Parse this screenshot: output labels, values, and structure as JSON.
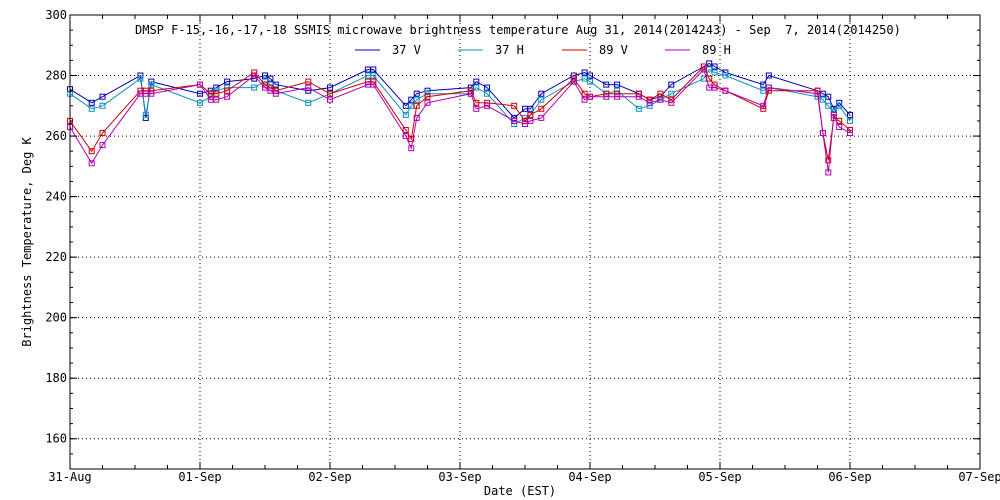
{
  "chart_data": {
    "type": "line",
    "title": "DMSP F-15,-16,-17,-18 SSMIS microwave brightness temperature Aug 31, 2014(2014243) - Sep  7, 2014(2014250)",
    "xlabel": "Date (EST)",
    "ylabel": "Brightness Temperature, Deg K",
    "ylim": [
      150,
      300
    ],
    "yticks": [
      160,
      180,
      200,
      220,
      240,
      260,
      280,
      300
    ],
    "xlim": [
      "2014-08-31",
      "2014-09-07"
    ],
    "xticks": [
      "31-Aug",
      "01-Sep",
      "02-Sep",
      "03-Sep",
      "04-Sep",
      "05-Sep",
      "06-Sep",
      "07-Sep"
    ],
    "grid": true,
    "legend_position": "top-center",
    "series": [
      {
        "name": "37 V",
        "color": "#0000b0",
        "points": [
          [
            "2014-08-31 00:00",
            275.5
          ],
          [
            "2014-08-31 04:00",
            271
          ],
          [
            "2014-08-31 06:00",
            273
          ],
          [
            "2014-08-31 13:00",
            280
          ],
          [
            "2014-08-31 14:00",
            266
          ],
          [
            "2014-08-31 15:00",
            278
          ],
          [
            "2014-09-01 00:00",
            274
          ],
          [
            "2014-09-01 02:00",
            275
          ],
          [
            "2014-09-01 03:00",
            276
          ],
          [
            "2014-09-01 05:00",
            278
          ],
          [
            "2014-09-01 10:00",
            279
          ],
          [
            "2014-09-01 12:00",
            280
          ],
          [
            "2014-09-01 13:00",
            279
          ],
          [
            "2014-09-01 14:00",
            277
          ],
          [
            "2014-09-01 20:00",
            275
          ],
          [
            "2014-09-02 00:00",
            276
          ],
          [
            "2014-09-02 07:00",
            282
          ],
          [
            "2014-09-02 08:00",
            282
          ],
          [
            "2014-09-02 14:00",
            270
          ],
          [
            "2014-09-02 15:00",
            272
          ],
          [
            "2014-09-02 16:00",
            274
          ],
          [
            "2014-09-02 18:00",
            275
          ],
          [
            "2014-09-03 02:00",
            276
          ],
          [
            "2014-09-03 03:00",
            278
          ],
          [
            "2014-09-03 05:00",
            276
          ],
          [
            "2014-09-03 10:00",
            266
          ],
          [
            "2014-09-03 12:00",
            269
          ],
          [
            "2014-09-03 13:00",
            269
          ],
          [
            "2014-09-03 15:00",
            274
          ],
          [
            "2014-09-03 21:00",
            280
          ],
          [
            "2014-09-03 23:00",
            281
          ],
          [
            "2014-09-04 00:00",
            280
          ],
          [
            "2014-09-04 03:00",
            277
          ],
          [
            "2014-09-04 05:00",
            277
          ],
          [
            "2014-09-04 09:00",
            274
          ],
          [
            "2014-09-04 11:00",
            272
          ],
          [
            "2014-09-04 13:00",
            273
          ],
          [
            "2014-09-04 15:00",
            277
          ],
          [
            "2014-09-04 21:00",
            283
          ],
          [
            "2014-09-04 22:00",
            284
          ],
          [
            "2014-09-04 23:00",
            283
          ],
          [
            "2014-09-05 01:00",
            281
          ],
          [
            "2014-09-05 08:00",
            277
          ],
          [
            "2014-09-05 09:00",
            280
          ],
          [
            "2014-09-05 18:00",
            275
          ],
          [
            "2014-09-05 19:00",
            274
          ],
          [
            "2014-09-05 20:00",
            273
          ],
          [
            "2014-09-05 21:00",
            269
          ],
          [
            "2014-09-05 22:00",
            271
          ],
          [
            "2014-09-06 00:00",
            267
          ]
        ]
      },
      {
        "name": "37 H",
        "color": "#1090c0",
        "points": [
          [
            "2014-08-31 00:00",
            274
          ],
          [
            "2014-08-31 04:00",
            269
          ],
          [
            "2014-08-31 06:00",
            270
          ],
          [
            "2014-08-31 13:00",
            279
          ],
          [
            "2014-08-31 14:00",
            267
          ],
          [
            "2014-08-31 15:00",
            277
          ],
          [
            "2014-09-01 00:00",
            271
          ],
          [
            "2014-09-01 02:00",
            273
          ],
          [
            "2014-09-01 03:00",
            275
          ],
          [
            "2014-09-01 05:00",
            276
          ],
          [
            "2014-09-01 10:00",
            276
          ],
          [
            "2014-09-01 12:00",
            278
          ],
          [
            "2014-09-01 13:00",
            277
          ],
          [
            "2014-09-01 14:00",
            275
          ],
          [
            "2014-09-01 20:00",
            271
          ],
          [
            "2014-09-02 00:00",
            274
          ],
          [
            "2014-09-02 07:00",
            280
          ],
          [
            "2014-09-02 08:00",
            280
          ],
          [
            "2014-09-02 14:00",
            267
          ],
          [
            "2014-09-02 15:00",
            270
          ],
          [
            "2014-09-02 16:00",
            272
          ],
          [
            "2014-09-02 18:00",
            274
          ],
          [
            "2014-09-03 02:00",
            274
          ],
          [
            "2014-09-03 03:00",
            276
          ],
          [
            "2014-09-03 05:00",
            274
          ],
          [
            "2014-09-03 10:00",
            264
          ],
          [
            "2014-09-03 12:00",
            266
          ],
          [
            "2014-09-03 13:00",
            267
          ],
          [
            "2014-09-03 15:00",
            272
          ],
          [
            "2014-09-03 21:00",
            278
          ],
          [
            "2014-09-03 23:00",
            279
          ],
          [
            "2014-09-04 00:00",
            278
          ],
          [
            "2014-09-04 03:00",
            274
          ],
          [
            "2014-09-04 05:00",
            275
          ],
          [
            "2014-09-04 09:00",
            269
          ],
          [
            "2014-09-04 11:00",
            270
          ],
          [
            "2014-09-04 13:00",
            272
          ],
          [
            "2014-09-04 15:00",
            274
          ],
          [
            "2014-09-04 21:00",
            279
          ],
          [
            "2014-09-04 22:00",
            282
          ],
          [
            "2014-09-04 23:00",
            281
          ],
          [
            "2014-09-05 01:00",
            280
          ],
          [
            "2014-09-05 08:00",
            275
          ],
          [
            "2014-09-05 09:00",
            276
          ],
          [
            "2014-09-05 18:00",
            273
          ],
          [
            "2014-09-05 19:00",
            272
          ],
          [
            "2014-09-05 20:00",
            270
          ],
          [
            "2014-09-05 21:00",
            268
          ],
          [
            "2014-09-05 22:00",
            270
          ],
          [
            "2014-09-06 00:00",
            265
          ]
        ]
      },
      {
        "name": "89 V",
        "color": "#d00000",
        "points": [
          [
            "2014-08-31 00:00",
            265
          ],
          [
            "2014-08-31 04:00",
            255
          ],
          [
            "2014-08-31 06:00",
            261
          ],
          [
            "2014-08-31 13:00",
            275
          ],
          [
            "2014-08-31 14:00",
            275
          ],
          [
            "2014-08-31 15:00",
            275
          ],
          [
            "2014-09-01 00:00",
            277
          ],
          [
            "2014-09-01 02:00",
            274
          ],
          [
            "2014-09-01 03:00",
            274
          ],
          [
            "2014-09-01 05:00",
            275
          ],
          [
            "2014-09-01 10:00",
            281
          ],
          [
            "2014-09-01 12:00",
            277
          ],
          [
            "2014-09-01 13:00",
            276
          ],
          [
            "2014-09-01 14:00",
            275
          ],
          [
            "2014-09-01 20:00",
            278
          ],
          [
            "2014-09-02 00:00",
            274
          ],
          [
            "2014-09-02 07:00",
            278
          ],
          [
            "2014-09-02 08:00",
            278
          ],
          [
            "2014-09-02 14:00",
            262
          ],
          [
            "2014-09-02 15:00",
            259
          ],
          [
            "2014-09-02 16:00",
            270
          ],
          [
            "2014-09-02 18:00",
            273
          ],
          [
            "2014-09-03 02:00",
            275
          ],
          [
            "2014-09-03 03:00",
            271
          ],
          [
            "2014-09-03 05:00",
            271
          ],
          [
            "2014-09-03 10:00",
            270
          ],
          [
            "2014-09-03 12:00",
            265
          ],
          [
            "2014-09-03 13:00",
            267
          ],
          [
            "2014-09-03 15:00",
            269
          ],
          [
            "2014-09-03 21:00",
            279
          ],
          [
            "2014-09-03 23:00",
            274
          ],
          [
            "2014-09-04 00:00",
            273
          ],
          [
            "2014-09-04 03:00",
            274
          ],
          [
            "2014-09-04 05:00",
            274
          ],
          [
            "2014-09-04 09:00",
            274
          ],
          [
            "2014-09-04 11:00",
            272
          ],
          [
            "2014-09-04 13:00",
            274
          ],
          [
            "2014-09-04 15:00",
            272
          ],
          [
            "2014-09-04 21:00",
            283
          ],
          [
            "2014-09-04 22:00",
            279
          ],
          [
            "2014-09-04 23:00",
            277
          ],
          [
            "2014-09-05 01:00",
            275
          ],
          [
            "2014-09-05 08:00",
            269
          ],
          [
            "2014-09-05 09:00",
            275
          ],
          [
            "2014-09-05 18:00",
            275
          ],
          [
            "2014-09-05 19:00",
            261
          ],
          [
            "2014-09-05 20:00",
            252
          ],
          [
            "2014-09-05 21:00",
            266
          ],
          [
            "2014-09-05 22:00",
            265
          ],
          [
            "2014-09-06 00:00",
            262
          ]
        ]
      },
      {
        "name": "89 H",
        "color": "#b000b0",
        "points": [
          [
            "2014-08-31 00:00",
            263
          ],
          [
            "2014-08-31 04:00",
            251
          ],
          [
            "2014-08-31 06:00",
            257
          ],
          [
            "2014-08-31 13:00",
            274
          ],
          [
            "2014-08-31 14:00",
            274
          ],
          [
            "2014-08-31 15:00",
            274
          ],
          [
            "2014-09-01 00:00",
            277
          ],
          [
            "2014-09-01 02:00",
            272
          ],
          [
            "2014-09-01 03:00",
            272
          ],
          [
            "2014-09-01 05:00",
            273
          ],
          [
            "2014-09-01 10:00",
            280
          ],
          [
            "2014-09-01 12:00",
            276
          ],
          [
            "2014-09-01 13:00",
            275
          ],
          [
            "2014-09-01 14:00",
            274
          ],
          [
            "2014-09-01 20:00",
            276
          ],
          [
            "2014-09-02 00:00",
            272
          ],
          [
            "2014-09-02 07:00",
            277
          ],
          [
            "2014-09-02 08:00",
            277
          ],
          [
            "2014-09-02 14:00",
            260
          ],
          [
            "2014-09-02 15:00",
            256
          ],
          [
            "2014-09-02 16:00",
            266
          ],
          [
            "2014-09-02 18:00",
            271
          ],
          [
            "2014-09-03 02:00",
            274
          ],
          [
            "2014-09-03 03:00",
            269
          ],
          [
            "2014-09-03 05:00",
            270
          ],
          [
            "2014-09-03 10:00",
            265
          ],
          [
            "2014-09-03 12:00",
            264
          ],
          [
            "2014-09-03 13:00",
            265
          ],
          [
            "2014-09-03 15:00",
            266
          ],
          [
            "2014-09-03 21:00",
            278
          ],
          [
            "2014-09-03 23:00",
            272
          ],
          [
            "2014-09-04 00:00",
            273
          ],
          [
            "2014-09-04 03:00",
            273
          ],
          [
            "2014-09-04 05:00",
            273
          ],
          [
            "2014-09-04 09:00",
            273
          ],
          [
            "2014-09-04 11:00",
            271
          ],
          [
            "2014-09-04 13:00",
            272
          ],
          [
            "2014-09-04 15:00",
            271
          ],
          [
            "2014-09-04 21:00",
            282
          ],
          [
            "2014-09-04 22:00",
            276
          ],
          [
            "2014-09-04 23:00",
            276
          ],
          [
            "2014-09-05 01:00",
            275
          ],
          [
            "2014-09-05 08:00",
            270
          ],
          [
            "2014-09-05 09:00",
            276
          ],
          [
            "2014-09-05 18:00",
            274
          ],
          [
            "2014-09-05 19:00",
            261
          ],
          [
            "2014-09-05 20:00",
            248
          ],
          [
            "2014-09-05 21:00",
            267
          ],
          [
            "2014-09-05 22:00",
            263
          ],
          [
            "2014-09-06 00:00",
            261
          ]
        ]
      }
    ]
  }
}
